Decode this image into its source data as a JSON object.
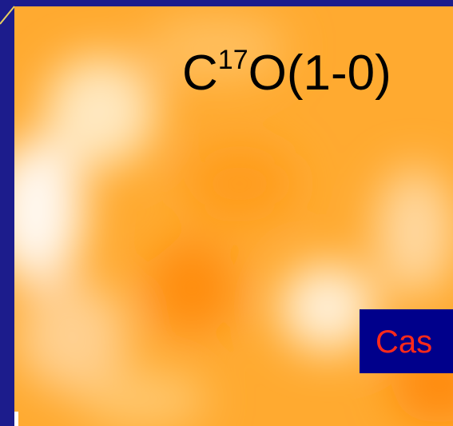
{
  "title": {
    "base": "C",
    "superscript": "17",
    "rest": "O(1-0)"
  },
  "label": "Cas"
}
